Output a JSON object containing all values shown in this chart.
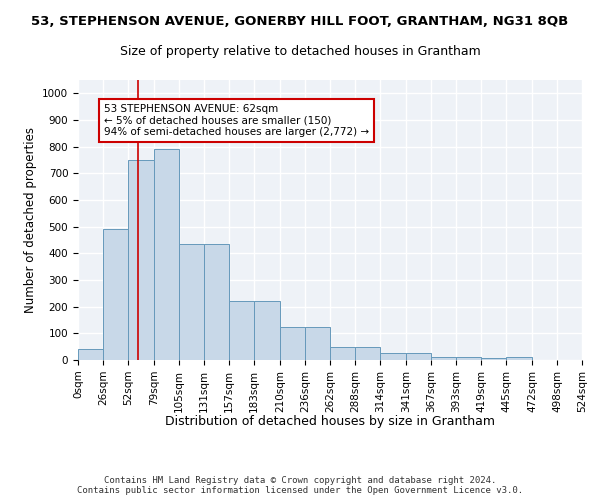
{
  "title_main": "53, STEPHENSON AVENUE, GONERBY HILL FOOT, GRANTHAM, NG31 8QB",
  "title_sub": "Size of property relative to detached houses in Grantham",
  "xlabel": "Distribution of detached houses by size in Grantham",
  "ylabel": "Number of detached properties",
  "footer_line1": "Contains HM Land Registry data © Crown copyright and database right 2024.",
  "footer_line2": "Contains public sector information licensed under the Open Government Licence v3.0.",
  "annotation_line1": "53 STEPHENSON AVENUE: 62sqm",
  "annotation_line2": "← 5% of detached houses are smaller (150)",
  "annotation_line3": "94% of semi-detached houses are larger (2,772) →",
  "bar_heights": [
    40,
    490,
    750,
    790,
    435,
    435,
    220,
    220,
    125,
    125,
    50,
    50,
    25,
    25,
    12,
    10,
    7,
    10,
    0,
    0
  ],
  "bin_edges": [
    0,
    26,
    52,
    79,
    105,
    131,
    157,
    183,
    210,
    236,
    262,
    288,
    314,
    341,
    367,
    393,
    419,
    445,
    472,
    498,
    524
  ],
  "bin_labels": [
    "0sqm",
    "26sqm",
    "52sqm",
    "79sqm",
    "105sqm",
    "131sqm",
    "157sqm",
    "183sqm",
    "210sqm",
    "236sqm",
    "262sqm",
    "288sqm",
    "314sqm",
    "341sqm",
    "367sqm",
    "393sqm",
    "419sqm",
    "445sqm",
    "472sqm",
    "498sqm",
    "524sqm"
  ],
  "bar_color": "#c8d8e8",
  "bar_edge_color": "#6699bb",
  "red_line_x": 62,
  "annotation_box_color": "#ffffff",
  "annotation_box_edge": "#cc0000",
  "ylim": [
    0,
    1050
  ],
  "yticks": [
    0,
    100,
    200,
    300,
    400,
    500,
    600,
    700,
    800,
    900,
    1000
  ],
  "background_color": "#eef2f7",
  "grid_color": "#ffffff",
  "title_main_fontsize": 9.5,
  "title_sub_fontsize": 9,
  "xlabel_fontsize": 9,
  "ylabel_fontsize": 8.5,
  "tick_fontsize": 7.5,
  "footer_fontsize": 6.5
}
